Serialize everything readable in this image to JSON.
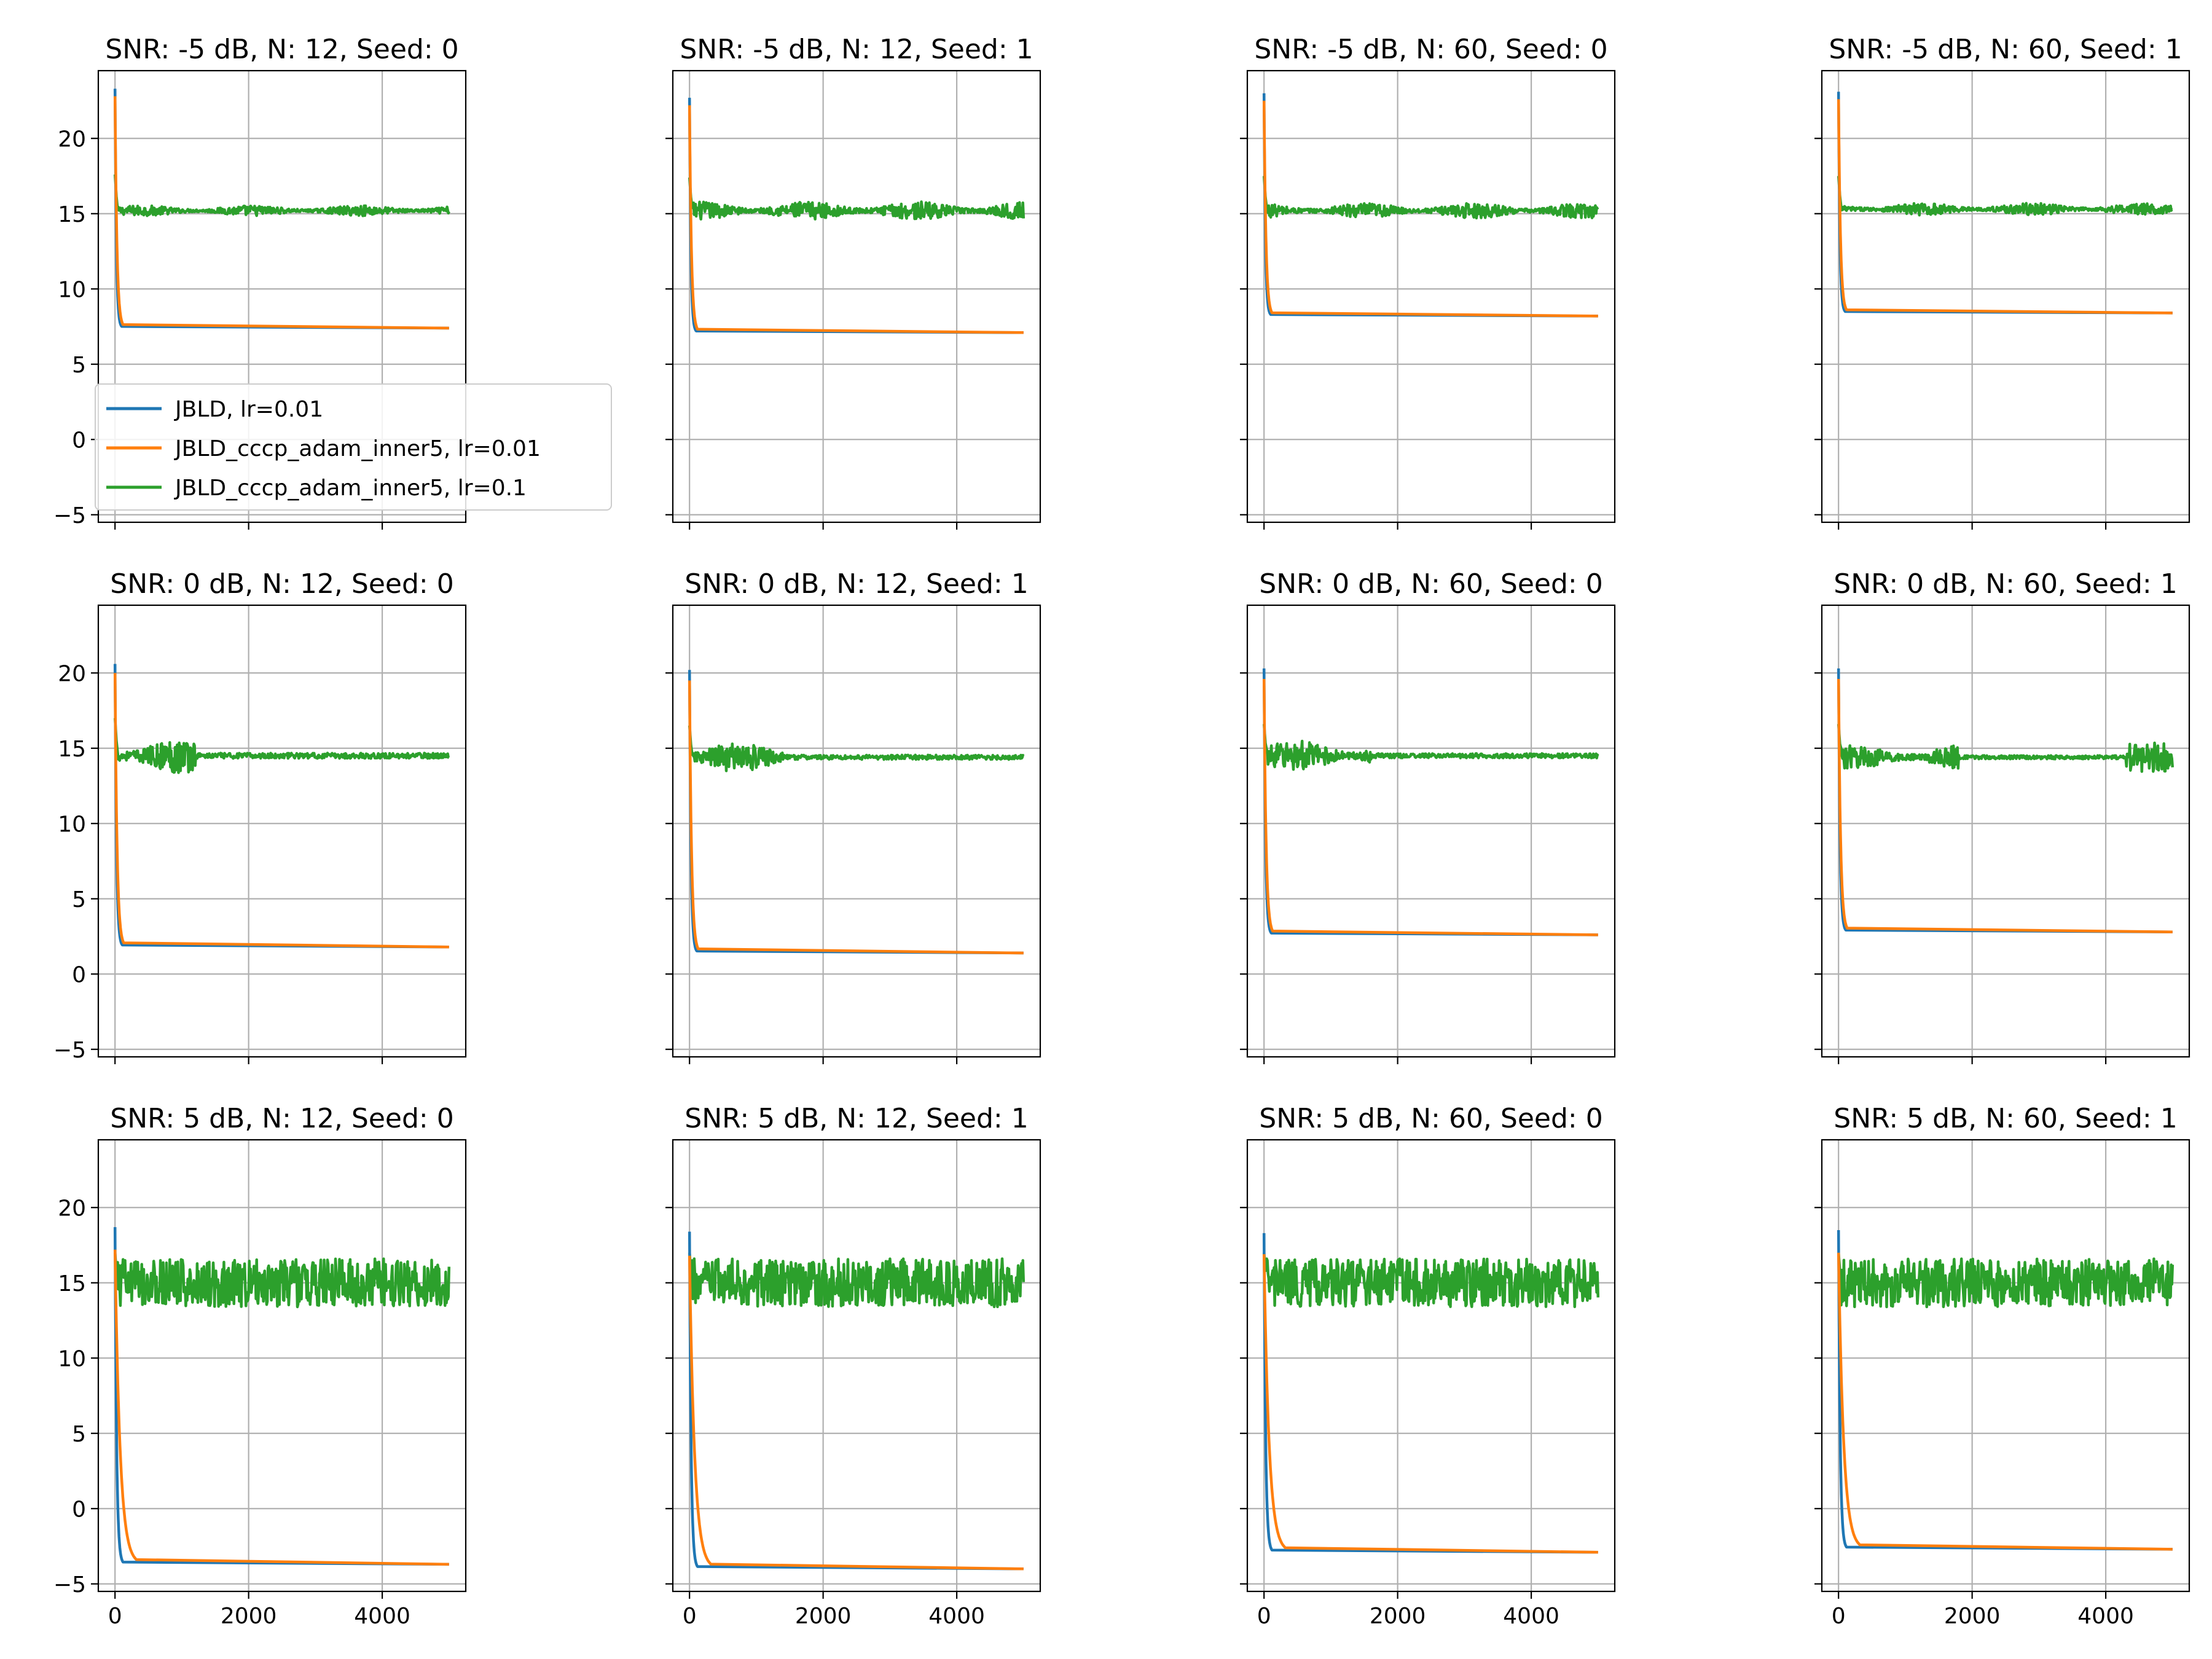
{
  "chart_data": {
    "type": "line",
    "layout": "3x4 grid of subplots",
    "sharey": true,
    "xlim": [
      -250,
      5250
    ],
    "ylim": [
      -5.5,
      24.5
    ],
    "xticks": [
      0,
      2000,
      4000
    ],
    "xtick_labels": [
      "0",
      "2000",
      "4000"
    ],
    "yticks": [
      -5,
      0,
      5,
      10,
      15,
      20
    ],
    "ytick_labels": [
      "−5",
      "0",
      "5",
      "10",
      "15",
      "20"
    ],
    "grid": true,
    "legend": {
      "location": "lower-left of first subplot",
      "entries": [
        {
          "name": "JBLD, lr=0.01",
          "color": "#1f77b4"
        },
        {
          "name": "JBLD_cccp_adam_inner5, lr=0.01",
          "color": "#ff7f0e"
        },
        {
          "name": "JBLD_cccp_adam_inner5, lr=0.1",
          "color": "#2ca02c"
        }
      ]
    },
    "subplots": [
      {
        "title": "SNR: -5 dB, N: 12, Seed: 0",
        "start": 23.3,
        "orange_start": 22.8,
        "final_orange": 7.4,
        "final_blue": 7.4,
        "green_level": 15.2,
        "green_amp": 0.35,
        "green_spike": 17.6,
        "blue_drop_end": 100,
        "orange_drop_end": 120
      },
      {
        "title": "SNR: -5 dB, N: 12, Seed: 1",
        "start": 22.7,
        "orange_start": 22.2,
        "final_orange": 7.1,
        "final_blue": 7.1,
        "green_level": 15.2,
        "green_amp": 0.6,
        "green_spike": 17.4,
        "blue_drop_end": 100,
        "orange_drop_end": 120
      },
      {
        "title": "SNR: -5 dB, N: 60, Seed: 0",
        "start": 23.0,
        "orange_start": 22.5,
        "final_orange": 8.2,
        "final_blue": 8.2,
        "green_level": 15.2,
        "green_amp": 0.5,
        "green_spike": 17.5,
        "blue_drop_end": 100,
        "orange_drop_end": 120
      },
      {
        "title": "SNR: -5 dB, N: 60, Seed: 1",
        "start": 23.1,
        "orange_start": 22.6,
        "final_orange": 8.4,
        "final_blue": 8.4,
        "green_level": 15.3,
        "green_amp": 0.4,
        "green_spike": 17.5,
        "blue_drop_end": 100,
        "orange_drop_end": 120
      },
      {
        "title": "SNR: 0 dB, N: 12, Seed: 0",
        "start": 20.6,
        "orange_start": 20.0,
        "final_orange": 1.8,
        "final_blue": 1.8,
        "green_level": 14.5,
        "green_amp": 1.2,
        "green_spike": 17.0,
        "blue_drop_end": 110,
        "orange_drop_end": 130
      },
      {
        "title": "SNR: 0 dB, N: 12, Seed: 1",
        "start": 20.2,
        "orange_start": 19.5,
        "final_orange": 1.4,
        "final_blue": 1.4,
        "green_level": 14.4,
        "green_amp": 1.0,
        "green_spike": 16.5,
        "blue_drop_end": 110,
        "orange_drop_end": 130
      },
      {
        "title": "SNR: 0 dB, N: 60, Seed: 0",
        "start": 20.3,
        "orange_start": 19.6,
        "final_orange": 2.6,
        "final_blue": 2.6,
        "green_level": 14.5,
        "green_amp": 1.0,
        "green_spike": 16.6,
        "blue_drop_end": 110,
        "orange_drop_end": 130
      },
      {
        "title": "SNR: 0 dB, N: 60, Seed: 1",
        "start": 20.3,
        "orange_start": 19.6,
        "final_orange": 2.8,
        "final_blue": 2.8,
        "green_level": 14.4,
        "green_amp": 0.8,
        "green_spike": 16.6,
        "blue_drop_end": 110,
        "orange_drop_end": 130
      },
      {
        "title": "SNR: 5 dB, N: 12, Seed: 0",
        "start": 18.7,
        "orange_start": 17.2,
        "final_orange": -3.7,
        "final_blue": -3.7,
        "green_level": 15.0,
        "green_amp": 1.6,
        "green_spike": 17.0,
        "blue_drop_end": 120,
        "orange_drop_end": 320
      },
      {
        "title": "SNR: 5 dB, N: 12, Seed: 1",
        "start": 18.4,
        "orange_start": 16.8,
        "final_orange": -4.0,
        "final_blue": -4.0,
        "green_level": 15.0,
        "green_amp": 1.6,
        "green_spike": 17.0,
        "blue_drop_end": 120,
        "orange_drop_end": 320
      },
      {
        "title": "SNR: 5 dB, N: 60, Seed: 0",
        "start": 18.3,
        "orange_start": 16.9,
        "final_orange": -2.9,
        "final_blue": -2.9,
        "green_level": 15.0,
        "green_amp": 1.6,
        "green_spike": 17.0,
        "blue_drop_end": 120,
        "orange_drop_end": 320
      },
      {
        "title": "SNR: 5 dB, N: 60, Seed: 1",
        "start": 18.5,
        "orange_start": 17.0,
        "final_orange": -2.7,
        "final_blue": -2.7,
        "green_level": 15.0,
        "green_amp": 1.6,
        "green_spike": 17.0,
        "blue_drop_end": 120,
        "orange_drop_end": 320
      }
    ]
  }
}
